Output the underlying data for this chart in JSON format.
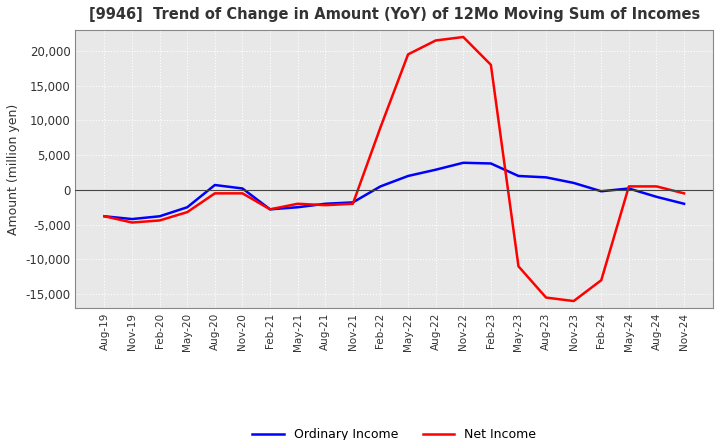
{
  "title": "[9946]  Trend of Change in Amount (YoY) of 12Mo Moving Sum of Incomes",
  "ylabel": "Amount (million yen)",
  "ylim": [
    -17000,
    23000
  ],
  "yticks": [
    -15000,
    -10000,
    -5000,
    0,
    5000,
    10000,
    15000,
    20000
  ],
  "background_color": "#ffffff",
  "plot_bg_color": "#e8e8e8",
  "grid_color": "#ffffff",
  "ordinary_income_color": "#0000ff",
  "net_income_color": "#ff0000",
  "dates": [
    "Aug-19",
    "Nov-19",
    "Feb-20",
    "May-20",
    "Aug-20",
    "Nov-20",
    "Feb-21",
    "May-21",
    "Aug-21",
    "Nov-21",
    "Feb-22",
    "May-22",
    "Aug-22",
    "Nov-22",
    "Feb-23",
    "May-23",
    "Aug-23",
    "Nov-23",
    "Feb-24",
    "May-24",
    "Aug-24",
    "Nov-24"
  ],
  "ordinary_income": [
    -3800,
    -4200,
    -3800,
    -2500,
    700,
    200,
    -2800,
    -2500,
    -2000,
    -1800,
    500,
    2000,
    2900,
    3900,
    3800,
    2000,
    1800,
    1000,
    -200,
    200,
    -1000,
    -2000
  ],
  "net_income": [
    -3800,
    -4700,
    -4400,
    -3200,
    -500,
    -500,
    -2800,
    -2000,
    -2200,
    -2000,
    9000,
    19500,
    21500,
    22000,
    18000,
    -11000,
    -15500,
    -16000,
    -13000,
    500,
    500,
    -500
  ]
}
